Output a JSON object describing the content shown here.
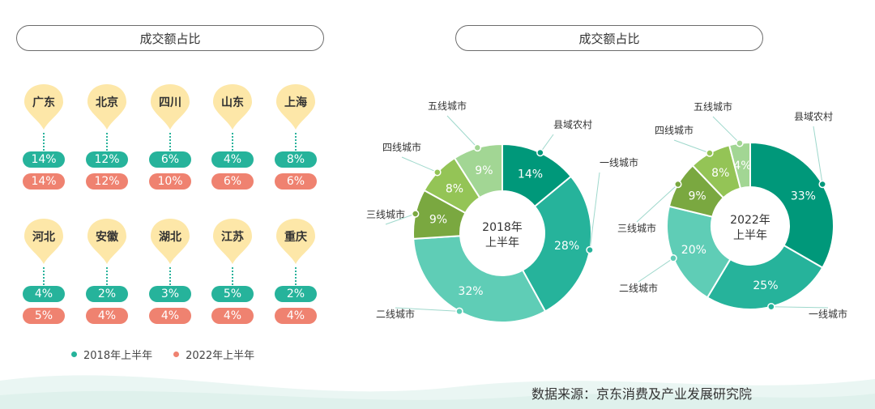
{
  "colors": {
    "y2018": "#26b39b",
    "y2022": "#ef8270",
    "pin": "#fde7a8",
    "segments": [
      "#00987a",
      "#26b39b",
      "#5fcdb6",
      "#7aa840",
      "#94c456",
      "#a2d694"
    ]
  },
  "titles": {
    "left": "成交额占比",
    "right": "成交额占比"
  },
  "legend": {
    "y2018": "2018年上半年",
    "y2022": "2022年上半年"
  },
  "source": "数据来源：京东消费及产业发展研究院",
  "chart_data": [
    {
      "type": "table",
      "columns": [
        "2018年上半年",
        "2022年上半年"
      ],
      "rows": [
        {
          "city": "广东",
          "v2018": "14%",
          "v2022": "14%"
        },
        {
          "city": "北京",
          "v2018": "12%",
          "v2022": "12%"
        },
        {
          "city": "四川",
          "v2018": "6%",
          "v2022": "10%"
        },
        {
          "city": "山东",
          "v2018": "4%",
          "v2022": "6%"
        },
        {
          "city": "上海",
          "v2018": "8%",
          "v2022": "6%"
        },
        {
          "city": "河北",
          "v2018": "4%",
          "v2022": "5%"
        },
        {
          "city": "安徽",
          "v2018": "2%",
          "v2022": "4%"
        },
        {
          "city": "湖北",
          "v2018": "3%",
          "v2022": "4%"
        },
        {
          "city": "江苏",
          "v2018": "5%",
          "v2022": "4%"
        },
        {
          "city": "重庆",
          "v2018": "2%",
          "v2022": "4%"
        }
      ]
    },
    {
      "type": "pie",
      "center_label": [
        "2018年",
        "上半年"
      ],
      "slices": [
        {
          "label": "县域农村",
          "value": 14
        },
        {
          "label": "一线城市",
          "value": 28
        },
        {
          "label": "二线城市",
          "value": 32
        },
        {
          "label": "三线城市",
          "value": 9
        },
        {
          "label": "四线城市",
          "value": 8
        },
        {
          "label": "五线城市",
          "value": 9
        }
      ]
    },
    {
      "type": "pie",
      "center_label": [
        "2022年",
        "上半年"
      ],
      "slices": [
        {
          "label": "县域农村",
          "value": 33
        },
        {
          "label": "一线城市",
          "value": 25
        },
        {
          "label": "二线城市",
          "value": 20
        },
        {
          "label": "三线城市",
          "value": 9
        },
        {
          "label": "四线城市",
          "value": 8
        },
        {
          "label": "五线城市",
          "value": 4
        }
      ]
    }
  ]
}
